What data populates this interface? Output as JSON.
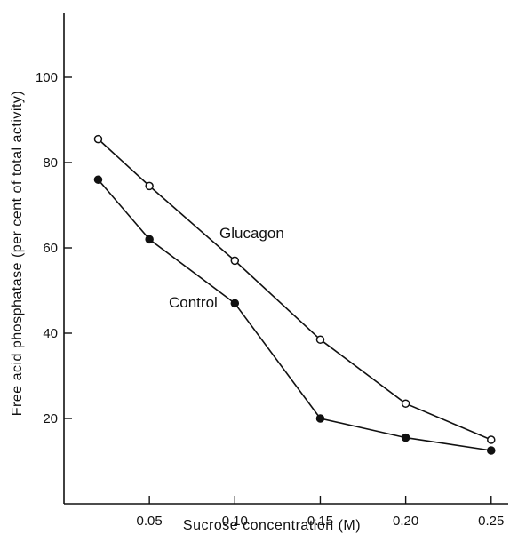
{
  "chart_data": {
    "type": "line",
    "xlabel": "Sucrose concentration (M)",
    "ylabel": "Free acid phosphatase (per cent of total activity)",
    "xlim": [
      0.0,
      0.26
    ],
    "ylim": [
      0,
      115
    ],
    "x_ticks": [
      0.05,
      0.1,
      0.15,
      0.2,
      0.25
    ],
    "x_tick_labels": [
      "0.05",
      "0.10",
      "0.15",
      "0.20",
      "0.25"
    ],
    "y_ticks": [
      20,
      40,
      60,
      80,
      100
    ],
    "y_tick_labels": [
      "20",
      "40",
      "60",
      "80",
      "100"
    ],
    "grid": false,
    "series": [
      {
        "name": "Glucagon",
        "marker": "open-circle",
        "x": [
          0.02,
          0.05,
          0.1,
          0.15,
          0.2,
          0.25
        ],
        "y": [
          85.5,
          74.5,
          57,
          38.5,
          23.5,
          15
        ]
      },
      {
        "name": "Control",
        "marker": "filled-circle",
        "x": [
          0.02,
          0.05,
          0.1,
          0.15,
          0.2,
          0.25
        ],
        "y": [
          76,
          62,
          47,
          20,
          15.5,
          12.5
        ]
      }
    ]
  }
}
